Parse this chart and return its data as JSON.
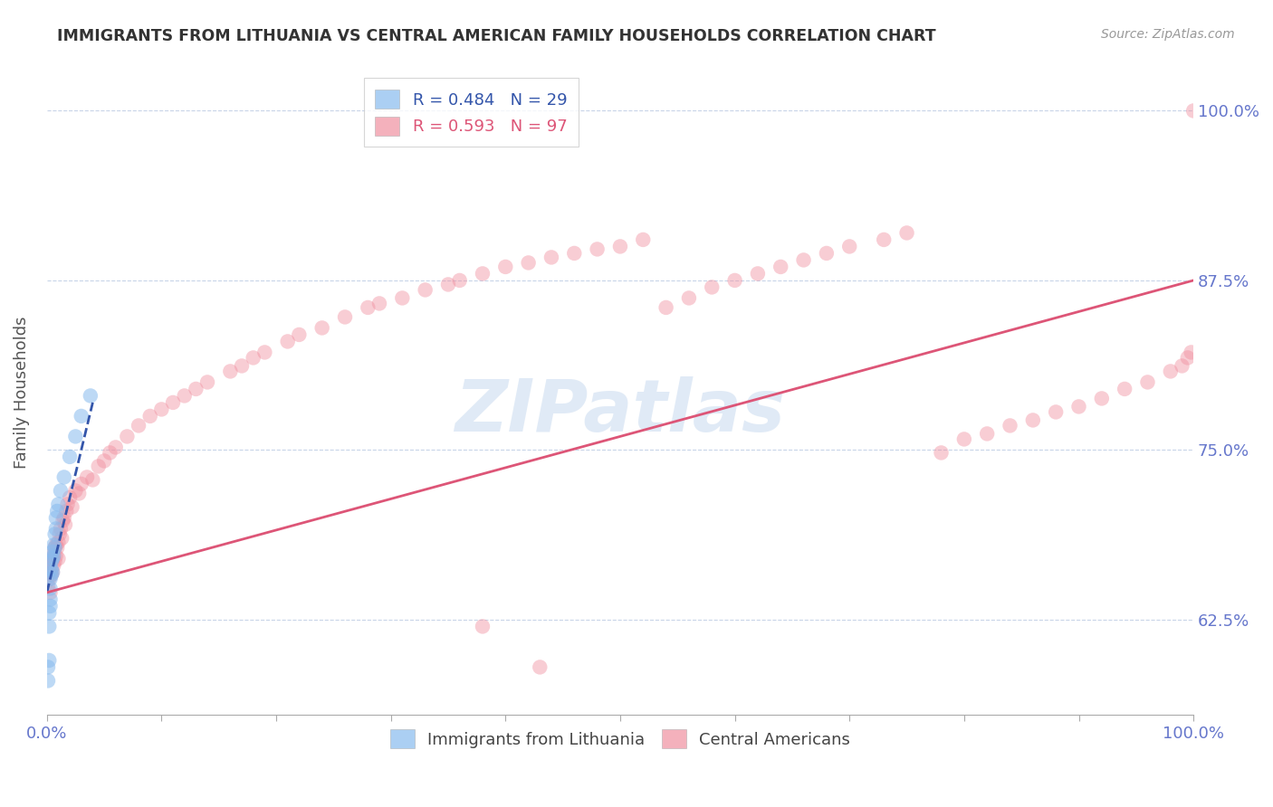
{
  "title": "IMMIGRANTS FROM LITHUANIA VS CENTRAL AMERICAN FAMILY HOUSEHOLDS CORRELATION CHART",
  "source": "Source: ZipAtlas.com",
  "ylabel": "Family Households",
  "ytick_labels": [
    "62.5%",
    "75.0%",
    "87.5%",
    "100.0%"
  ],
  "ytick_values": [
    0.625,
    0.75,
    0.875,
    1.0
  ],
  "legend_entries": [
    {
      "label": "R = 0.484   N = 29",
      "color": "#7ab0e0"
    },
    {
      "label": "R = 0.593   N = 97",
      "color": "#f08080"
    }
  ],
  "legend_footer": [
    "Immigrants from Lithuania",
    "Central Americans"
  ],
  "watermark": "ZIPatlas",
  "background_color": "#ffffff",
  "grid_color": "#c8d4e8",
  "title_color": "#333333",
  "axis_label_color": "#6677cc",
  "scatter_blue_color": "#88bbee",
  "scatter_pink_color": "#f090a0",
  "trendline_blue_color": "#3355aa",
  "trendline_pink_color": "#dd5577",
  "xlim": [
    0.0,
    1.0
  ],
  "ylim": [
    0.555,
    1.03
  ],
  "lit_trendline_x": [
    0.0,
    0.04
  ],
  "lit_trendline_y": [
    0.645,
    0.785
  ],
  "ca_trendline_x": [
    0.0,
    1.0
  ],
  "ca_trendline_y": [
    0.645,
    0.875
  ],
  "lit_x": [
    0.001,
    0.001,
    0.002,
    0.002,
    0.002,
    0.003,
    0.003,
    0.003,
    0.003,
    0.004,
    0.004,
    0.004,
    0.005,
    0.005,
    0.005,
    0.006,
    0.006,
    0.007,
    0.007,
    0.008,
    0.008,
    0.009,
    0.01,
    0.012,
    0.015,
    0.02,
    0.025,
    0.03,
    0.038
  ],
  "lit_y": [
    0.58,
    0.59,
    0.595,
    0.62,
    0.63,
    0.635,
    0.64,
    0.648,
    0.655,
    0.658,
    0.662,
    0.668,
    0.66,
    0.67,
    0.675,
    0.672,
    0.68,
    0.678,
    0.688,
    0.692,
    0.7,
    0.705,
    0.71,
    0.72,
    0.73,
    0.745,
    0.76,
    0.775,
    0.79
  ],
  "ca_x": [
    0.001,
    0.001,
    0.002,
    0.002,
    0.003,
    0.003,
    0.003,
    0.004,
    0.004,
    0.005,
    0.005,
    0.006,
    0.006,
    0.007,
    0.007,
    0.008,
    0.008,
    0.009,
    0.01,
    0.01,
    0.011,
    0.012,
    0.013,
    0.014,
    0.015,
    0.016,
    0.017,
    0.018,
    0.02,
    0.022,
    0.025,
    0.028,
    0.03,
    0.035,
    0.04,
    0.045,
    0.05,
    0.055,
    0.06,
    0.07,
    0.08,
    0.09,
    0.1,
    0.11,
    0.12,
    0.13,
    0.14,
    0.16,
    0.17,
    0.18,
    0.19,
    0.21,
    0.22,
    0.24,
    0.26,
    0.28,
    0.29,
    0.31,
    0.33,
    0.35,
    0.36,
    0.38,
    0.4,
    0.42,
    0.44,
    0.46,
    0.48,
    0.5,
    0.52,
    0.54,
    0.56,
    0.58,
    0.6,
    0.62,
    0.64,
    0.66,
    0.68,
    0.7,
    0.73,
    0.75,
    0.78,
    0.8,
    0.82,
    0.84,
    0.86,
    0.88,
    0.9,
    0.92,
    0.94,
    0.96,
    0.98,
    0.99,
    0.995,
    0.998,
    1.0,
    0.43,
    0.38
  ],
  "ca_y": [
    0.65,
    0.66,
    0.655,
    0.668,
    0.645,
    0.66,
    0.672,
    0.658,
    0.668,
    0.66,
    0.67,
    0.665,
    0.672,
    0.668,
    0.678,
    0.672,
    0.68,
    0.678,
    0.67,
    0.682,
    0.688,
    0.692,
    0.685,
    0.698,
    0.7,
    0.695,
    0.705,
    0.71,
    0.715,
    0.708,
    0.72,
    0.718,
    0.725,
    0.73,
    0.728,
    0.738,
    0.742,
    0.748,
    0.752,
    0.76,
    0.768,
    0.775,
    0.78,
    0.785,
    0.79,
    0.795,
    0.8,
    0.808,
    0.812,
    0.818,
    0.822,
    0.83,
    0.835,
    0.84,
    0.848,
    0.855,
    0.858,
    0.862,
    0.868,
    0.872,
    0.875,
    0.88,
    0.885,
    0.888,
    0.892,
    0.895,
    0.898,
    0.9,
    0.905,
    0.855,
    0.862,
    0.87,
    0.875,
    0.88,
    0.885,
    0.89,
    0.895,
    0.9,
    0.905,
    0.91,
    0.748,
    0.758,
    0.762,
    0.768,
    0.772,
    0.778,
    0.782,
    0.788,
    0.795,
    0.8,
    0.808,
    0.812,
    0.818,
    0.822,
    1.0,
    0.59,
    0.62
  ]
}
